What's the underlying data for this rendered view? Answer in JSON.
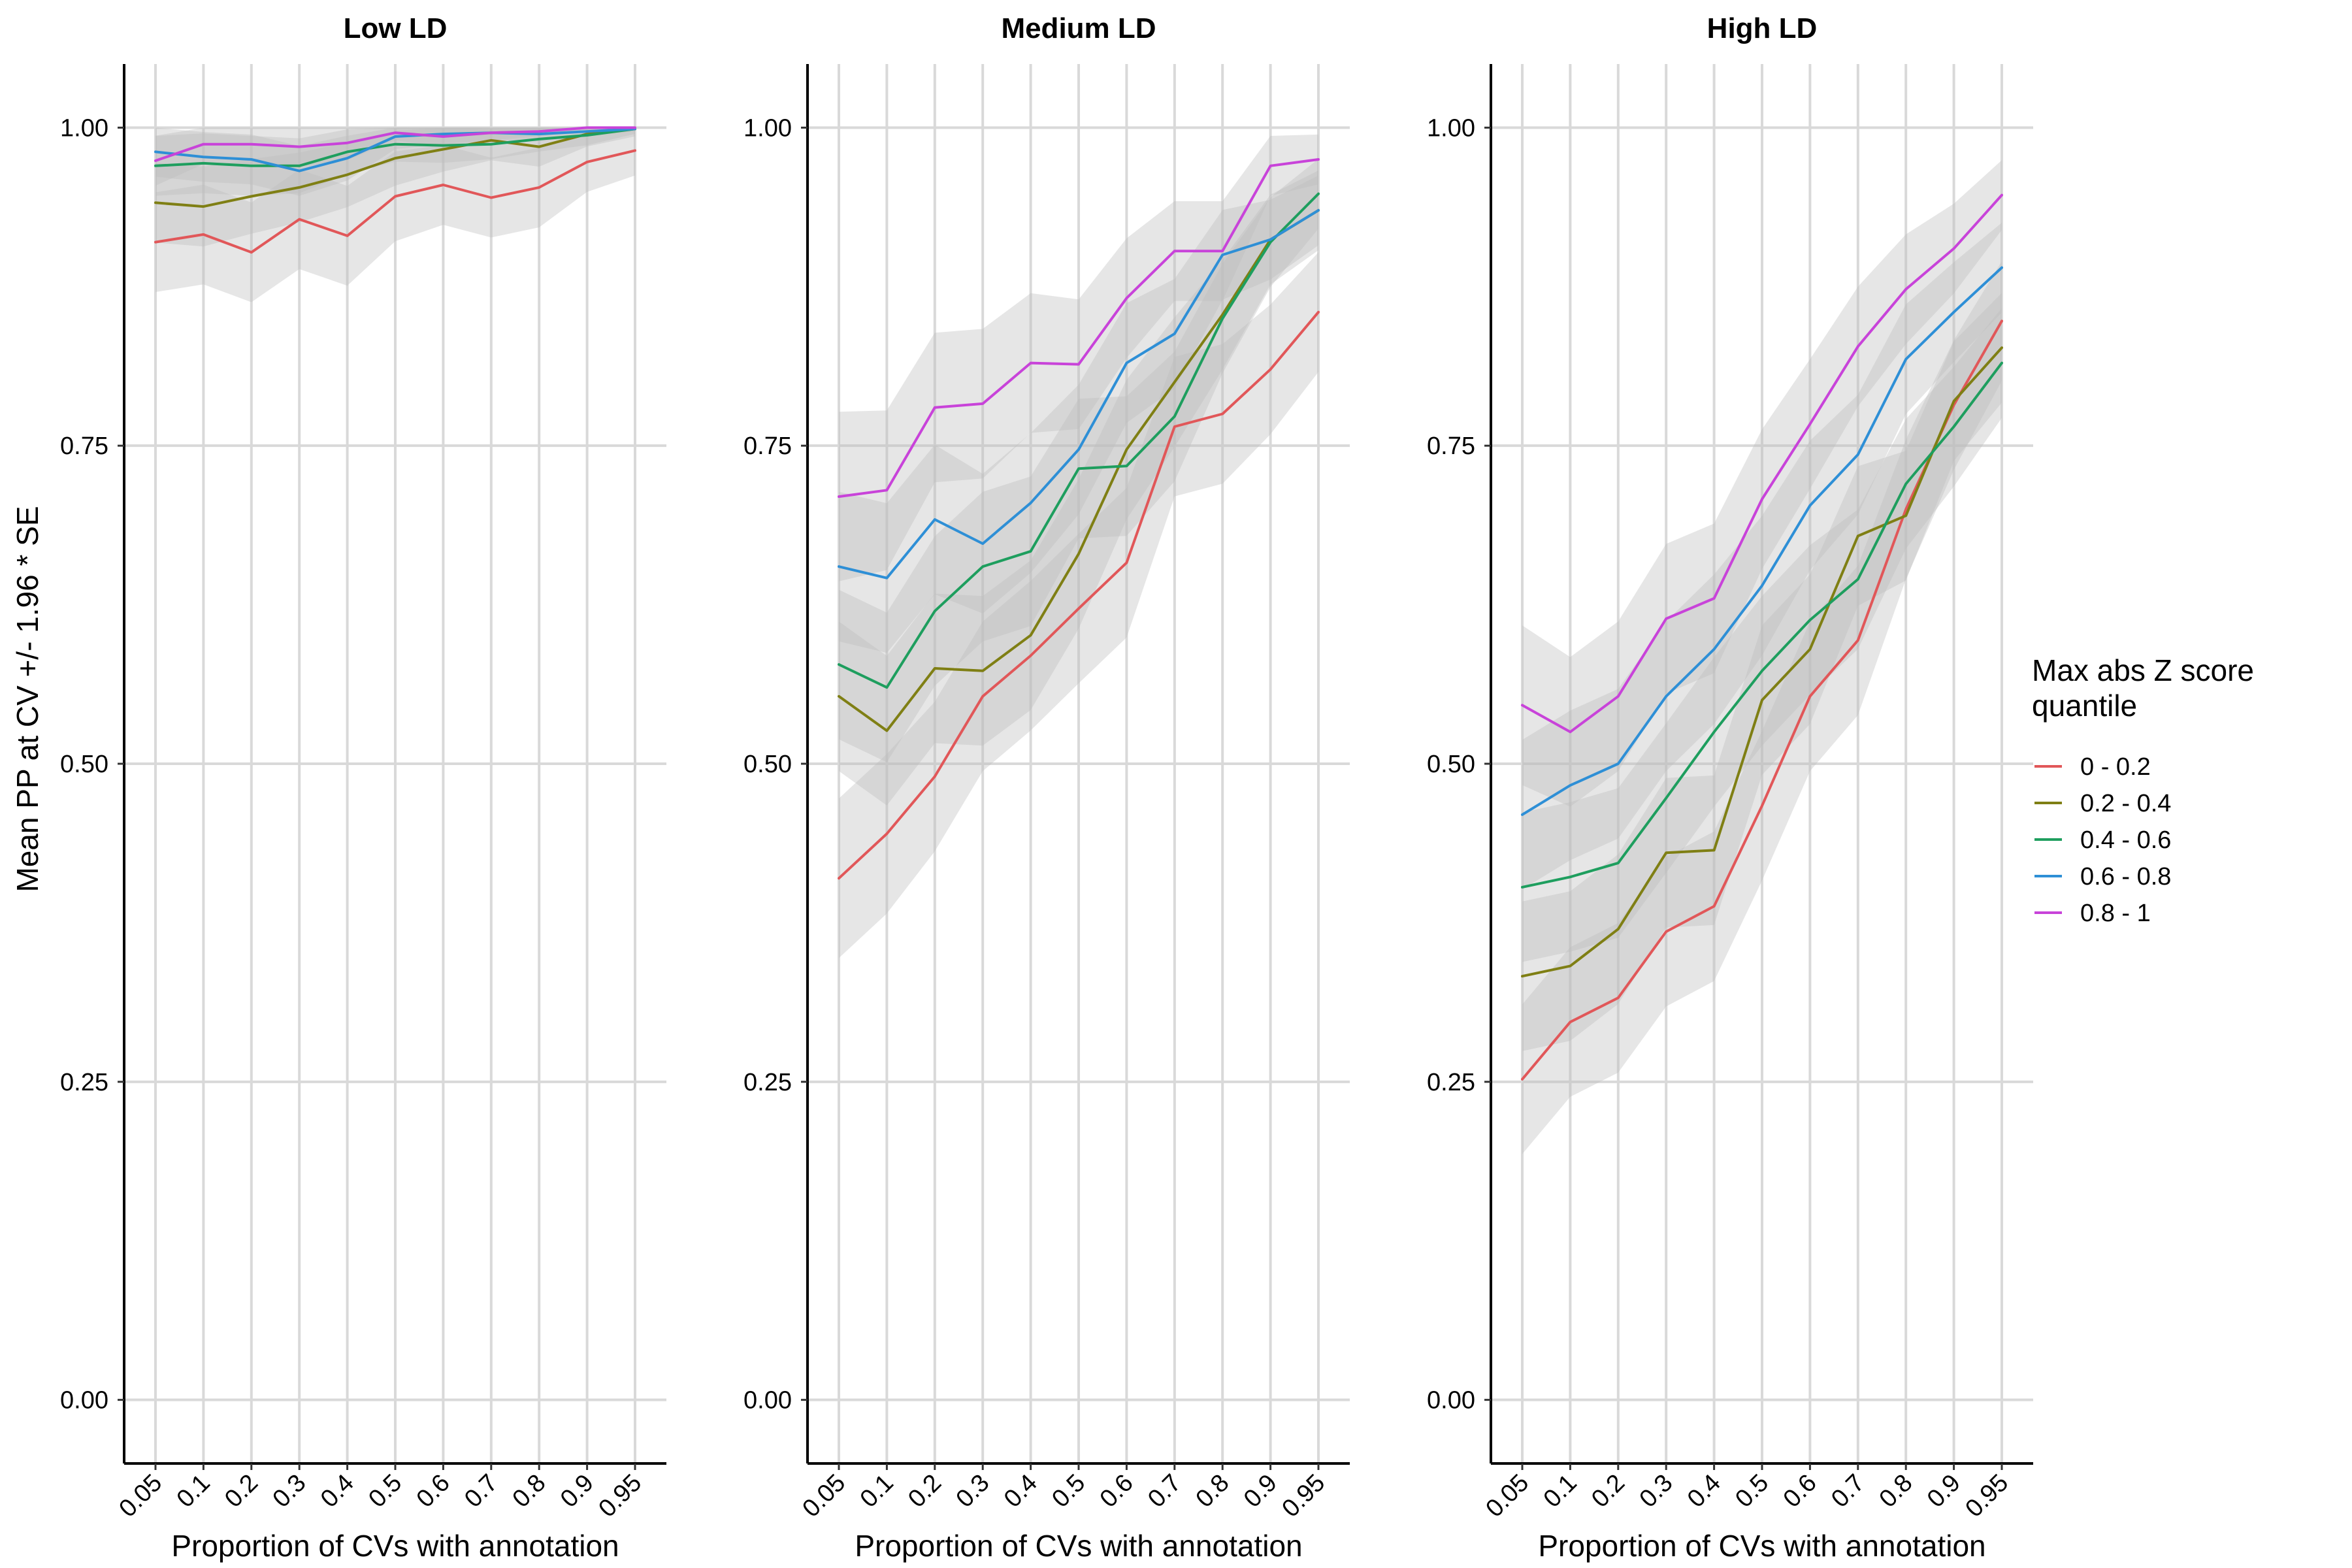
{
  "chart_data": {
    "type": "line",
    "facets": [
      "Low LD",
      "Medium LD",
      "High LD"
    ],
    "x_categories": [
      "0.05",
      "0.1",
      "0.2",
      "0.3",
      "0.4",
      "0.5",
      "0.6",
      "0.7",
      "0.8",
      "0.9",
      "0.95"
    ],
    "xlabel": "Proportion of CVs with annotation",
    "ylabel": "Mean PP at CV +/- 1.96 * SE",
    "ylim": [
      -0.05,
      1.05
    ],
    "y_ticks": [
      "0.00",
      "0.25",
      "0.50",
      "0.75",
      "1.00"
    ],
    "y_tick_values": [
      0,
      0.25,
      0.5,
      0.75,
      1.0
    ],
    "grid": true,
    "legend": {
      "title_lines": [
        "Max abs Z score",
        "quantile"
      ],
      "position": "right"
    },
    "series": [
      {
        "name": "0 - 0.2",
        "color": "#E15759",
        "panels": [
          {
            "mean": [
              0.91,
              0.916,
              0.902,
              0.928,
              0.915,
              0.946,
              0.955,
              0.945,
              0.953,
              0.973,
              0.982
            ],
            "se": [
              0.02,
              0.02,
              0.02,
              0.02,
              0.02,
              0.018,
              0.016,
              0.016,
              0.016,
              0.012,
              0.01
            ]
          },
          {
            "mean": [
              0.41,
              0.445,
              0.49,
              0.553,
              0.585,
              0.622,
              0.658,
              0.765,
              0.775,
              0.81,
              0.855
            ],
            "se": [
              0.032,
              0.032,
              0.03,
              0.03,
              0.03,
              0.03,
              0.03,
              0.028,
              0.028,
              0.026,
              0.024
            ]
          },
          {
            "mean": [
              0.252,
              0.297,
              0.316,
              0.368,
              0.388,
              0.467,
              0.553,
              0.597,
              0.7,
              0.782,
              0.848
            ],
            "se": [
              0.03,
              0.03,
              0.03,
              0.03,
              0.03,
              0.03,
              0.03,
              0.03,
              0.028,
              0.026,
              0.024
            ]
          }
        ]
      },
      {
        "name": "0.2 - 0.4",
        "color": "#7F7F14",
        "panels": [
          {
            "mean": [
              0.941,
              0.938,
              0.946,
              0.953,
              0.963,
              0.976,
              0.983,
              0.99,
              0.985,
              0.995,
              0.999
            ],
            "se": [
              0.016,
              0.016,
              0.015,
              0.014,
              0.013,
              0.011,
              0.009,
              0.008,
              0.008,
              0.005,
              0.003
            ]
          },
          {
            "mean": [
              0.553,
              0.526,
              0.575,
              0.573,
              0.601,
              0.665,
              0.747,
              0.8,
              0.853,
              0.912,
              0.935
            ],
            "se": [
              0.03,
              0.03,
              0.03,
              0.03,
              0.03,
              0.03,
              0.028,
              0.026,
              0.022,
              0.018,
              0.016
            ]
          },
          {
            "mean": [
              0.333,
              0.341,
              0.37,
              0.43,
              0.432,
              0.55,
              0.59,
              0.679,
              0.695,
              0.785,
              0.827
            ],
            "se": [
              0.03,
              0.03,
              0.03,
              0.03,
              0.03,
              0.03,
              0.03,
              0.028,
              0.026,
              0.024,
              0.022
            ]
          }
        ]
      },
      {
        "name": "0.4 - 0.6",
        "color": "#1E9E5E",
        "panels": [
          {
            "mean": [
              0.97,
              0.972,
              0.97,
              0.97,
              0.981,
              0.987,
              0.986,
              0.987,
              0.991,
              0.994,
              0.999
            ],
            "se": [
              0.012,
              0.012,
              0.012,
              0.011,
              0.009,
              0.007,
              0.007,
              0.006,
              0.005,
              0.004,
              0.002
            ]
          },
          {
            "mean": [
              0.578,
              0.56,
              0.62,
              0.655,
              0.667,
              0.732,
              0.734,
              0.773,
              0.85,
              0.91,
              0.948
            ],
            "se": [
              0.03,
              0.03,
              0.03,
              0.03,
              0.03,
              0.028,
              0.028,
              0.026,
              0.022,
              0.018,
              0.014
            ]
          },
          {
            "mean": [
              0.403,
              0.411,
              0.422,
              0.473,
              0.525,
              0.573,
              0.613,
              0.645,
              0.72,
              0.765,
              0.815
            ],
            "se": [
              0.03,
              0.03,
              0.03,
              0.03,
              0.03,
              0.03,
              0.03,
              0.028,
              0.026,
              0.024,
              0.022
            ]
          }
        ]
      },
      {
        "name": "0.6 - 0.8",
        "color": "#2E8FD6",
        "panels": [
          {
            "mean": [
              0.981,
              0.977,
              0.975,
              0.966,
              0.976,
              0.993,
              0.995,
              0.996,
              0.995,
              0.997,
              0.999
            ],
            "se": [
              0.01,
              0.01,
              0.01,
              0.01,
              0.009,
              0.005,
              0.004,
              0.003,
              0.003,
              0.002,
              0.001
            ]
          },
          {
            "mean": [
              0.655,
              0.646,
              0.692,
              0.673,
              0.705,
              0.747,
              0.815,
              0.838,
              0.9,
              0.912,
              0.935
            ],
            "se": [
              0.03,
              0.03,
              0.03,
              0.028,
              0.028,
              0.026,
              0.024,
              0.022,
              0.018,
              0.016,
              0.014
            ]
          },
          {
            "mean": [
              0.46,
              0.483,
              0.5,
              0.553,
              0.59,
              0.64,
              0.703,
              0.743,
              0.818,
              0.855,
              0.89
            ],
            "se": [
              0.03,
              0.03,
              0.03,
              0.03,
              0.03,
              0.028,
              0.026,
              0.024,
              0.022,
              0.02,
              0.018
            ]
          }
        ]
      },
      {
        "name": "0.8 - 1",
        "color": "#C843D9",
        "panels": [
          {
            "mean": [
              0.974,
              0.987,
              0.987,
              0.985,
              0.988,
              0.996,
              0.993,
              0.996,
              0.997,
              1.0,
              1.0
            ],
            "se": [
              0.01,
              0.008,
              0.008,
              0.008,
              0.007,
              0.003,
              0.004,
              0.003,
              0.002,
              0.001,
              0.001
            ]
          },
          {
            "mean": [
              0.71,
              0.715,
              0.78,
              0.783,
              0.815,
              0.814,
              0.866,
              0.903,
              0.903,
              0.97,
              0.975
            ],
            "se": [
              0.034,
              0.032,
              0.03,
              0.03,
              0.028,
              0.026,
              0.024,
              0.02,
              0.02,
              0.012,
              0.01
            ]
          },
          {
            "mean": [
              0.546,
              0.525,
              0.553,
              0.614,
              0.63,
              0.708,
              0.767,
              0.828,
              0.873,
              0.905,
              0.947
            ],
            "se": [
              0.032,
              0.03,
              0.03,
              0.03,
              0.03,
              0.028,
              0.026,
              0.024,
              0.022,
              0.018,
              0.014
            ]
          }
        ]
      }
    ]
  }
}
